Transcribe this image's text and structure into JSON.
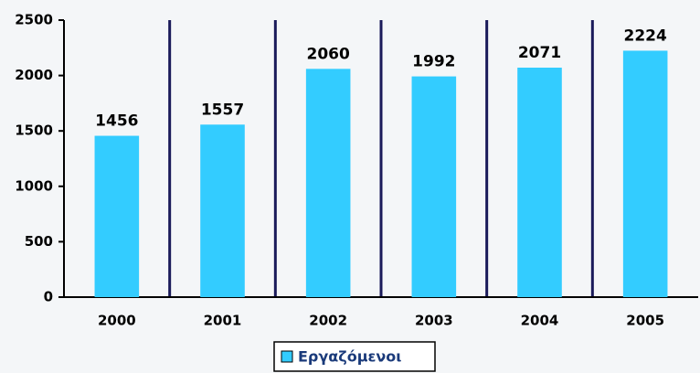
{
  "chart_data": {
    "type": "bar",
    "categories": [
      "2000",
      "2001",
      "2002",
      "2003",
      "2004",
      "2005"
    ],
    "series": [
      {
        "name": "Εργαζόμενοι",
        "color": "#33ccff",
        "values": [
          1456,
          1557,
          2060,
          1992,
          2071,
          2224
        ]
      }
    ],
    "ylim": [
      0,
      2500
    ],
    "yticks": [
      0,
      500,
      1000,
      1500,
      2000,
      2500
    ],
    "legend": "bottom",
    "data_labels": true
  }
}
